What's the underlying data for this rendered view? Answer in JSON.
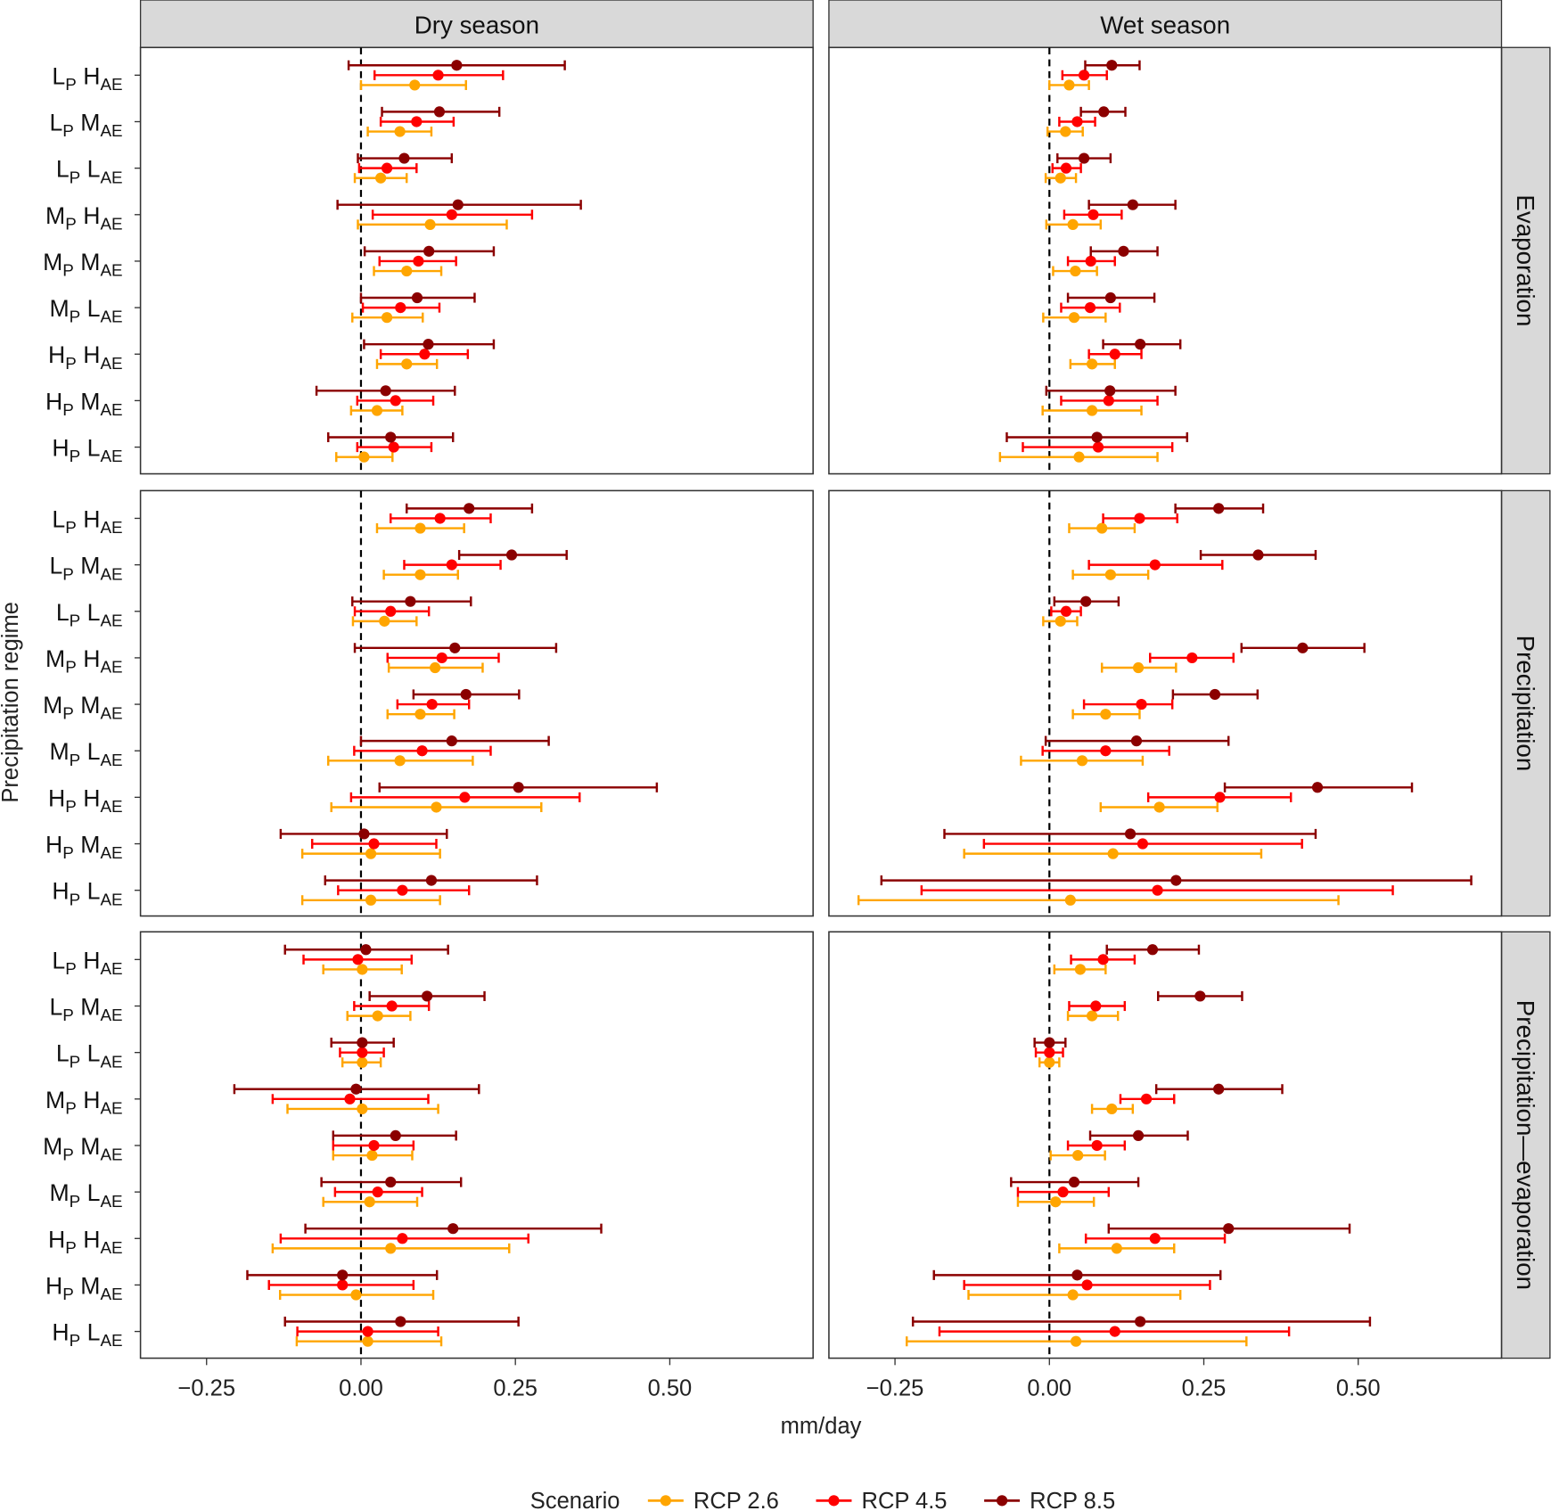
{
  "chart_data": {
    "type": "forest",
    "xlabel": "mm/day",
    "ylabel": "Precipitation regime",
    "xlim": [
      -0.357,
      0.732
    ],
    "xticks": [
      -0.25,
      0.0,
      0.25,
      0.5
    ],
    "xtick_labels": [
      "−0.25",
      "0.00",
      "0.25",
      "0.50"
    ],
    "reference_line": 0,
    "columns": [
      "Dry season",
      "Wet season"
    ],
    "rows_facets": [
      "Evaporation",
      "Precipitation",
      "Precipitation—evaporation"
    ],
    "categories": [
      {
        "a": "L",
        "a_sub": "P",
        "b": "H",
        "b_sub": "AE"
      },
      {
        "a": "L",
        "a_sub": "P",
        "b": "M",
        "b_sub": "AE"
      },
      {
        "a": "L",
        "a_sub": "P",
        "b": "L",
        "b_sub": "AE"
      },
      {
        "a": "M",
        "a_sub": "P",
        "b": "H",
        "b_sub": "AE"
      },
      {
        "a": "M",
        "a_sub": "P",
        "b": "M",
        "b_sub": "AE"
      },
      {
        "a": "M",
        "a_sub": "P",
        "b": "L",
        "b_sub": "AE"
      },
      {
        "a": "H",
        "a_sub": "P",
        "b": "H",
        "b_sub": "AE"
      },
      {
        "a": "H",
        "a_sub": "P",
        "b": "M",
        "b_sub": "AE"
      },
      {
        "a": "H",
        "a_sub": "P",
        "b": "L",
        "b_sub": "AE"
      }
    ],
    "legend": {
      "title": "Scenario",
      "position": "bottom"
    },
    "series": [
      {
        "name": "RCP 2.6",
        "color": "#FFA500"
      },
      {
        "name": "RCP 4.5",
        "color": "#FF0000"
      },
      {
        "name": "RCP 8.5",
        "color": "#8B0000"
      }
    ],
    "note": "values: [low, mean, high] per category, ordered RCP 2.6, RCP 4.5, RCP 8.5",
    "panels": {
      "Evaporation": {
        "Dry season": [
          [
            [
              0.0,
              0.087,
              0.17
            ],
            [
              0.022,
              0.125,
              0.23
            ],
            [
              -0.02,
              0.155,
              0.33
            ]
          ],
          [
            [
              0.011,
              0.063,
              0.114
            ],
            [
              0.032,
              0.09,
              0.15
            ],
            [
              0.034,
              0.127,
              0.224
            ]
          ],
          [
            [
              -0.01,
              0.032,
              0.074
            ],
            [
              -0.003,
              0.042,
              0.09
            ],
            [
              -0.005,
              0.07,
              0.147
            ]
          ],
          [
            [
              -0.005,
              0.112,
              0.236
            ],
            [
              0.019,
              0.147,
              0.277
            ],
            [
              -0.038,
              0.157,
              0.356
            ]
          ],
          [
            [
              0.021,
              0.074,
              0.13
            ],
            [
              0.03,
              0.093,
              0.154
            ],
            [
              0.006,
              0.11,
              0.215
            ]
          ],
          [
            [
              -0.014,
              0.042,
              0.1
            ],
            [
              0.003,
              0.064,
              0.127
            ],
            [
              0.0,
              0.091,
              0.184
            ]
          ],
          [
            [
              0.026,
              0.074,
              0.123
            ],
            [
              0.032,
              0.103,
              0.173
            ],
            [
              0.005,
              0.109,
              0.215
            ]
          ],
          [
            [
              -0.016,
              0.026,
              0.067
            ],
            [
              -0.006,
              0.056,
              0.117
            ],
            [
              -0.072,
              0.04,
              0.152
            ]
          ],
          [
            [
              -0.04,
              0.005,
              0.051
            ],
            [
              -0.006,
              0.053,
              0.114
            ],
            [
              -0.053,
              0.048,
              0.149
            ]
          ]
        ],
        "Wet season": [
          [
            [
              0.0,
              0.032,
              0.064
            ],
            [
              0.021,
              0.056,
              0.093
            ],
            [
              0.058,
              0.101,
              0.146
            ]
          ],
          [
            [
              -0.003,
              0.026,
              0.054
            ],
            [
              0.016,
              0.045,
              0.074
            ],
            [
              0.051,
              0.088,
              0.123
            ]
          ],
          [
            [
              -0.006,
              0.018,
              0.043
            ],
            [
              0.005,
              0.027,
              0.051
            ],
            [
              0.013,
              0.056,
              0.099
            ]
          ],
          [
            [
              -0.005,
              0.038,
              0.083
            ],
            [
              0.024,
              0.071,
              0.117
            ],
            [
              0.064,
              0.135,
              0.204
            ]
          ],
          [
            [
              0.006,
              0.042,
              0.077
            ],
            [
              0.03,
              0.067,
              0.106
            ],
            [
              0.067,
              0.12,
              0.175
            ]
          ],
          [
            [
              -0.01,
              0.04,
              0.091
            ],
            [
              0.019,
              0.066,
              0.114
            ],
            [
              0.03,
              0.099,
              0.17
            ]
          ],
          [
            [
              0.034,
              0.069,
              0.106
            ],
            [
              0.064,
              0.106,
              0.149
            ],
            [
              0.087,
              0.147,
              0.212
            ]
          ],
          [
            [
              -0.011,
              0.069,
              0.149
            ],
            [
              0.019,
              0.096,
              0.175
            ],
            [
              -0.005,
              0.098,
              0.204
            ]
          ],
          [
            [
              -0.08,
              0.048,
              0.175
            ],
            [
              -0.043,
              0.079,
              0.199
            ],
            [
              -0.069,
              0.077,
              0.223
            ]
          ]
        ]
      },
      "Precipitation": {
        "Dry season": [
          [
            [
              0.026,
              0.096,
              0.167
            ],
            [
              0.048,
              0.128,
              0.21
            ],
            [
              0.074,
              0.175,
              0.277
            ]
          ],
          [
            [
              0.037,
              0.096,
              0.157
            ],
            [
              0.07,
              0.147,
              0.226
            ],
            [
              0.159,
              0.244,
              0.333
            ]
          ],
          [
            [
              -0.013,
              0.038,
              0.09
            ],
            [
              -0.01,
              0.048,
              0.11
            ],
            [
              -0.014,
              0.08,
              0.178
            ]
          ],
          [
            [
              0.045,
              0.12,
              0.197
            ],
            [
              0.043,
              0.131,
              0.223
            ],
            [
              -0.01,
              0.152,
              0.316
            ]
          ],
          [
            [
              0.043,
              0.096,
              0.151
            ],
            [
              0.059,
              0.115,
              0.175
            ],
            [
              0.085,
              0.17,
              0.256
            ]
          ],
          [
            [
              -0.053,
              0.063,
              0.181
            ],
            [
              -0.011,
              0.099,
              0.21
            ],
            [
              0.0,
              0.147,
              0.304
            ]
          ],
          [
            [
              -0.048,
              0.122,
              0.292
            ],
            [
              -0.016,
              0.168,
              0.354
            ],
            [
              0.03,
              0.255,
              0.479
            ]
          ],
          [
            [
              -0.095,
              0.016,
              0.128
            ],
            [
              -0.079,
              0.021,
              0.122
            ],
            [
              -0.13,
              0.005,
              0.139
            ]
          ],
          [
            [
              -0.095,
              0.016,
              0.128
            ],
            [
              -0.037,
              0.067,
              0.175
            ],
            [
              -0.058,
              0.114,
              0.285
            ]
          ]
        ],
        "Wet season": [
          [
            [
              0.032,
              0.085,
              0.138
            ],
            [
              0.087,
              0.146,
              0.207
            ],
            [
              0.204,
              0.274,
              0.346
            ]
          ],
          [
            [
              0.038,
              0.099,
              0.16
            ],
            [
              0.064,
              0.171,
              0.28
            ],
            [
              0.245,
              0.338,
              0.431
            ]
          ],
          [
            [
              -0.01,
              0.018,
              0.045
            ],
            [
              0.003,
              0.027,
              0.051
            ],
            [
              0.008,
              0.059,
              0.112
            ]
          ],
          [
            [
              0.085,
              0.144,
              0.205
            ],
            [
              0.163,
              0.231,
              0.298
            ],
            [
              0.311,
              0.41,
              0.51
            ]
          ],
          [
            [
              0.038,
              0.091,
              0.146
            ],
            [
              0.056,
              0.149,
              0.199
            ],
            [
              0.2,
              0.268,
              0.337
            ]
          ],
          [
            [
              -0.046,
              0.053,
              0.151
            ],
            [
              -0.011,
              0.091,
              0.194
            ],
            [
              -0.006,
              0.141,
              0.29
            ]
          ],
          [
            [
              0.083,
              0.178,
              0.272
            ],
            [
              0.16,
              0.276,
              0.391
            ],
            [
              0.284,
              0.434,
              0.587
            ]
          ],
          [
            [
              -0.138,
              0.103,
              0.343
            ],
            [
              -0.106,
              0.151,
              0.409
            ],
            [
              -0.17,
              0.131,
              0.431
            ]
          ],
          [
            [
              -0.309,
              0.034,
              0.468
            ],
            [
              -0.207,
              0.175,
              0.556
            ],
            [
              -0.272,
              0.205,
              0.683
            ]
          ]
        ]
      },
      "Precipitation—evaporation": {
        "Dry season": [
          [
            [
              -0.061,
              0.002,
              0.066
            ],
            [
              -0.093,
              -0.005,
              0.082
            ],
            [
              -0.123,
              0.008,
              0.141
            ]
          ],
          [
            [
              -0.022,
              0.027,
              0.08
            ],
            [
              -0.011,
              0.05,
              0.11
            ],
            [
              0.014,
              0.107,
              0.2
            ]
          ],
          [
            [
              -0.03,
              0.002,
              0.032
            ],
            [
              -0.034,
              0.002,
              0.037
            ],
            [
              -0.048,
              0.002,
              0.053
            ]
          ],
          [
            [
              -0.119,
              0.002,
              0.125
            ],
            [
              -0.143,
              -0.018,
              0.109
            ],
            [
              -0.205,
              -0.008,
              0.191
            ]
          ],
          [
            [
              -0.045,
              0.018,
              0.083
            ],
            [
              -0.045,
              0.021,
              0.085
            ],
            [
              -0.045,
              0.056,
              0.154
            ]
          ],
          [
            [
              -0.061,
              0.014,
              0.091
            ],
            [
              -0.042,
              0.027,
              0.099
            ],
            [
              -0.064,
              0.048,
              0.162
            ]
          ],
          [
            [
              -0.143,
              0.048,
              0.24
            ],
            [
              -0.13,
              0.067,
              0.271
            ],
            [
              -0.09,
              0.149,
              0.389
            ]
          ],
          [
            [
              -0.131,
              -0.008,
              0.117
            ],
            [
              -0.149,
              -0.03,
              0.085
            ],
            [
              -0.184,
              -0.03,
              0.123
            ]
          ],
          [
            [
              -0.104,
              0.011,
              0.13
            ],
            [
              -0.103,
              0.011,
              0.125
            ],
            [
              -0.123,
              0.064,
              0.255
            ]
          ]
        ],
        "Wet season": [
          [
            [
              0.008,
              0.05,
              0.091
            ],
            [
              0.035,
              0.087,
              0.138
            ],
            [
              0.093,
              0.167,
              0.242
            ]
          ],
          [
            [
              0.03,
              0.069,
              0.111
            ],
            [
              0.032,
              0.075,
              0.122
            ],
            [
              0.176,
              0.244,
              0.312
            ]
          ],
          [
            [
              -0.016,
              0.0,
              0.016
            ],
            [
              -0.022,
              0.0,
              0.022
            ],
            [
              -0.024,
              0.0,
              0.026
            ]
          ],
          [
            [
              0.069,
              0.101,
              0.135
            ],
            [
              0.115,
              0.157,
              0.202
            ],
            [
              0.173,
              0.274,
              0.377
            ]
          ],
          [
            [
              0.002,
              0.046,
              0.09
            ],
            [
              0.03,
              0.077,
              0.122
            ],
            [
              0.066,
              0.144,
              0.224
            ]
          ],
          [
            [
              -0.051,
              0.01,
              0.072
            ],
            [
              -0.051,
              0.022,
              0.096
            ],
            [
              -0.062,
              0.04,
              0.144
            ]
          ],
          [
            [
              0.016,
              0.109,
              0.202
            ],
            [
              0.059,
              0.171,
              0.284
            ],
            [
              0.096,
              0.29,
              0.486
            ]
          ],
          [
            [
              -0.131,
              0.038,
              0.212
            ],
            [
              -0.138,
              0.061,
              0.26
            ],
            [
              -0.187,
              0.045,
              0.277
            ]
          ],
          [
            [
              -0.231,
              0.043,
              0.319
            ],
            [
              -0.178,
              0.106,
              0.388
            ],
            [
              -0.221,
              0.147,
              0.519
            ]
          ]
        ]
      }
    }
  }
}
